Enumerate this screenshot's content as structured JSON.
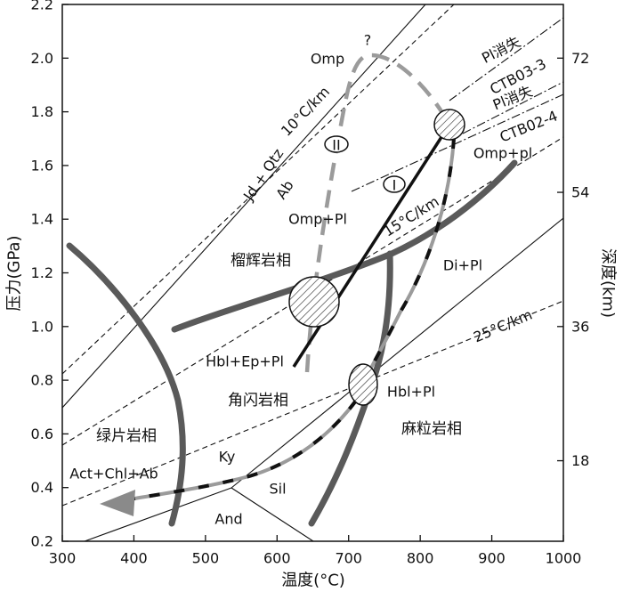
{
  "axes": {
    "x_title": "温度(°C)",
    "y_title": "压力(GPa)",
    "y2_title": "深度(km)",
    "x_ticks": [
      "300",
      "400",
      "500",
      "600",
      "700",
      "800",
      "900",
      "1000"
    ],
    "y_ticks": [
      "0.2",
      "0.4",
      "0.6",
      "0.8",
      "1.0",
      "1.2",
      "1.4",
      "1.6",
      "1.8",
      "2.0",
      "2.2"
    ],
    "y2_ticks": [
      "18",
      "36",
      "54",
      "72"
    ]
  },
  "facies": {
    "eclogite": "榴辉岩相",
    "amphibolite": "角闪岩相",
    "greenschist": "绿片岩相",
    "granulite": "麻粒岩相"
  },
  "assemblages": {
    "omp": "Omp",
    "omp_pl": "Omp+Pl",
    "omp_pl_lower": "Omp+pl",
    "di_pl": "Di+Pl",
    "hbl_ep_pl": "Hbl+Ep+Pl",
    "hbl_pl": "Hbl+Pl",
    "act_chl_ab": "Act+Chl+Ab",
    "ky": "Ky",
    "sil": "Sil",
    "and": "And",
    "jd_qtz": "Jd + Qtz",
    "ab": "Ab"
  },
  "geotherms": {
    "g10": "10°C/km",
    "g15": "15°C/km",
    "g25": "25°C/km"
  },
  "pl_out": [
    {
      "label": "Pl消失",
      "sample": "CTB03-3"
    },
    {
      "label": "Pl消失",
      "sample": "CTB02-4"
    }
  ],
  "paths": {
    "path_one": "I",
    "path_two": "II",
    "uncertain": "?"
  },
  "colors": {
    "facies_boundary": "#5a5a5a",
    "path_gray": "#9b9b9b",
    "path_black": "#111111",
    "arrow": "#8a8a8a"
  }
}
